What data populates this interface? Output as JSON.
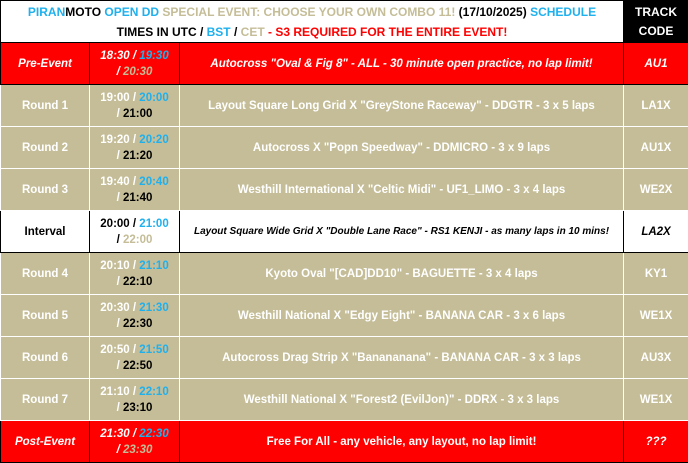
{
  "header": {
    "title_parts": [
      "PIRAN",
      "MOTO",
      " OPEN DD ",
      "SPECIAL EVENT: CHOOSE YOUR OWN COMBO 11! ",
      "(17/10/2025) ",
      "SCHEDULE"
    ],
    "subtitle_parts": [
      "TIMES IN UTC / ",
      "BST",
      " / ",
      "CET",
      " - S3 REQUIRED FOR THE ENTIRE EVENT!"
    ],
    "track_code_label": "TRACK CODE"
  },
  "colors": {
    "red": "#ff0000",
    "tan": "#c4bd97",
    "blue": "#1fb0ee",
    "black": "#000000"
  },
  "rows": [
    {
      "label": "Pre-Event",
      "utc": "18:30",
      "bst": "19:30",
      "cet": "20:30",
      "desc": "Autocross \"Oval & Fig 8\" - ALL - 30 minute open practice, no lap limit!",
      "code": "AU1",
      "style": "red"
    },
    {
      "label": "Round 1",
      "utc": "19:00",
      "bst": "20:00",
      "cet": "21:00",
      "desc": "Layout Square Long Grid X \"GreyStone Raceway\" - DDGTR - 3 x 5 laps",
      "code": "LA1X",
      "style": "tan"
    },
    {
      "label": "Round 2",
      "utc": "19:20",
      "bst": "20:20",
      "cet": "21:20",
      "desc": "Autocross X \"Popn Speedway\" - DDMICRO - 3 x 9 laps",
      "code": "AU1X",
      "style": "tan"
    },
    {
      "label": "Round 3",
      "utc": "19:40",
      "bst": "20:40",
      "cet": "21:40",
      "desc": "Westhill International X \"Celtic Midi\" - UF1_LIMO - 3 x 4 laps",
      "code": "WE2X",
      "style": "tan"
    },
    {
      "label": "Interval",
      "utc": "20:00",
      "bst": "21:00",
      "cet": "22:00",
      "desc": "Layout Square Wide Grid X \"Double Lane Race\" - RS1 KENJI - as many laps in 10 mins!",
      "code": "LA2X",
      "style": "white"
    },
    {
      "label": "Round 4",
      "utc": "20:10",
      "bst": "21:10",
      "cet": "22:10",
      "desc": "Kyoto Oval \"[CAD]DD10\" - BAGUETTE - 3 x 4 laps",
      "code": "KY1",
      "style": "tan"
    },
    {
      "label": "Round 5",
      "utc": "20:30",
      "bst": "21:30",
      "cet": "22:30",
      "desc": "Westhill National X \"Edgy Eight\" - BANANA CAR - 3 x 6 laps",
      "code": "WE1X",
      "style": "tan"
    },
    {
      "label": "Round 6",
      "utc": "20:50",
      "bst": "21:50",
      "cet": "22:50",
      "desc": "Autocross Drag Strip X \"Banananana\" - BANANA CAR - 3 x 3 laps",
      "code": "AU3X",
      "style": "tan"
    },
    {
      "label": "Round 7",
      "utc": "21:10",
      "bst": "22:10",
      "cet": "23:10",
      "desc": "Westhill National X \"Forest2 (EvilJon)\" - DDRX - 3 x 3 laps",
      "code": "WE1X",
      "style": "tan"
    },
    {
      "label": "Post-Event",
      "utc": "21:30",
      "bst": "22:30",
      "cet": "23:30",
      "desc": "Free For All - any vehicle, any layout, no lap limit!",
      "code": "???",
      "style": "red post"
    }
  ]
}
